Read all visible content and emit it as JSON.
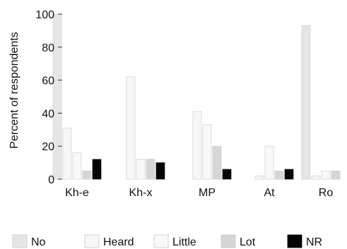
{
  "chart_data": {
    "type": "bar",
    "title": "",
    "xlabel": "",
    "ylabel": "Percent of respondents",
    "ylim": [
      0,
      100
    ],
    "yticks": [
      0,
      20,
      40,
      60,
      80,
      100
    ],
    "grid": false,
    "legend_position": "bottom",
    "categories": [
      "Kh-e",
      "Kh-x",
      "MP",
      "At",
      "Ro"
    ],
    "series": [
      {
        "name": "No",
        "color": "#e6e6e6",
        "values": [
          100,
          0,
          0,
          0,
          93
        ]
      },
      {
        "name": "Heard",
        "color": "#f7f7f7",
        "values": [
          31,
          62,
          41,
          2,
          2
        ]
      },
      {
        "name": "Little",
        "color": "#f9f9f9",
        "values": [
          16,
          12,
          33,
          20,
          5
        ]
      },
      {
        "name": "Lot",
        "color": "#d6d6d6",
        "values": [
          5,
          12,
          20,
          5,
          5
        ]
      },
      {
        "name": "NR",
        "color": "#050505",
        "values": [
          12,
          10,
          6,
          6,
          0
        ]
      }
    ]
  }
}
